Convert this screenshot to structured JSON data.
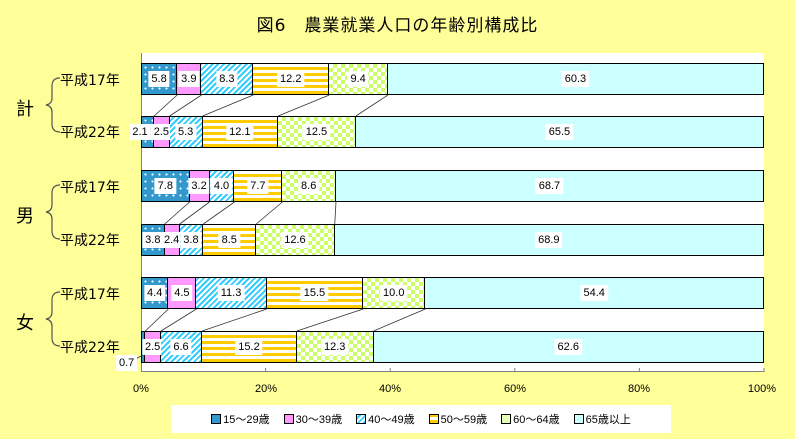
{
  "title": "図6　農業就業人口の年齢別構成比",
  "groups": [
    {
      "label": "計",
      "rows": [
        "平成17年",
        "平成22年"
      ]
    },
    {
      "label": "男",
      "rows": [
        "平成17年",
        "平成22年"
      ]
    },
    {
      "label": "女",
      "rows": [
        "平成17年",
        "平成22年"
      ]
    }
  ],
  "x_ticks": [
    "0%",
    "20%",
    "40%",
    "60%",
    "80%",
    "100%"
  ],
  "legend": [
    "15〜29歳",
    "30〜39歳",
    "40〜49歳",
    "50〜59歳",
    "60〜64歳",
    "65歳以上"
  ],
  "colors": {
    "15-29": "#3399CC",
    "30-39": "#FF99FF",
    "40-49": "#33CCFF",
    "50-59": "#FFCC00",
    "60-64": "#CCFF66",
    "65+": "#CCFFFF",
    "background": "#FFFF99"
  },
  "chart_data": {
    "type": "bar",
    "orientation": "horizontal",
    "stacked": "100%",
    "title": "図6　農業就業人口の年齢別構成比",
    "categories": [
      "計 平成17年",
      "計 平成22年",
      "男 平成17年",
      "男 平成22年",
      "女 平成17年",
      "女 平成22年"
    ],
    "series": [
      {
        "name": "15〜29歳",
        "values": [
          5.8,
          2.1,
          7.8,
          3.8,
          4.4,
          0.7
        ]
      },
      {
        "name": "30〜39歳",
        "values": [
          3.9,
          2.5,
          3.2,
          2.4,
          4.5,
          2.5
        ]
      },
      {
        "name": "40〜49歳",
        "values": [
          8.3,
          5.3,
          4.0,
          3.8,
          11.3,
          6.6
        ]
      },
      {
        "name": "50〜59歳",
        "values": [
          12.2,
          12.1,
          7.7,
          8.5,
          15.5,
          15.2
        ]
      },
      {
        "name": "60〜64歳",
        "values": [
          9.4,
          12.5,
          8.6,
          12.6,
          10.0,
          12.3
        ]
      },
      {
        "name": "65歳以上",
        "values": [
          60.3,
          65.5,
          68.7,
          68.9,
          54.4,
          62.6
        ]
      }
    ],
    "xlabel": "",
    "ylabel": "",
    "xlim": [
      0,
      100
    ],
    "x_ticks": [
      "0%",
      "20%",
      "40%",
      "60%",
      "80%",
      "100%"
    ],
    "legend_position": "bottom",
    "grid": false,
    "series_lines": true
  },
  "labels": {
    "r0": [
      "5.8",
      "3.9",
      "8.3",
      "12.2",
      "9.4",
      "60.3"
    ],
    "r1": [
      "2.1",
      "2.5",
      "5.3",
      "12.1",
      "12.5",
      "65.5"
    ],
    "r2": [
      "7.8",
      "3.2",
      "4.0",
      "7.7",
      "8.6",
      "68.7"
    ],
    "r3": [
      "3.8",
      "2.4",
      "3.8",
      "8.5",
      "12.6",
      "68.9"
    ],
    "r4": [
      "4.4",
      "4.5",
      "11.3",
      "15.5",
      "10.0",
      "54.4"
    ],
    "r5": [
      "0.7",
      "2.5",
      "6.6",
      "15.2",
      "12.3",
      "62.6"
    ]
  }
}
